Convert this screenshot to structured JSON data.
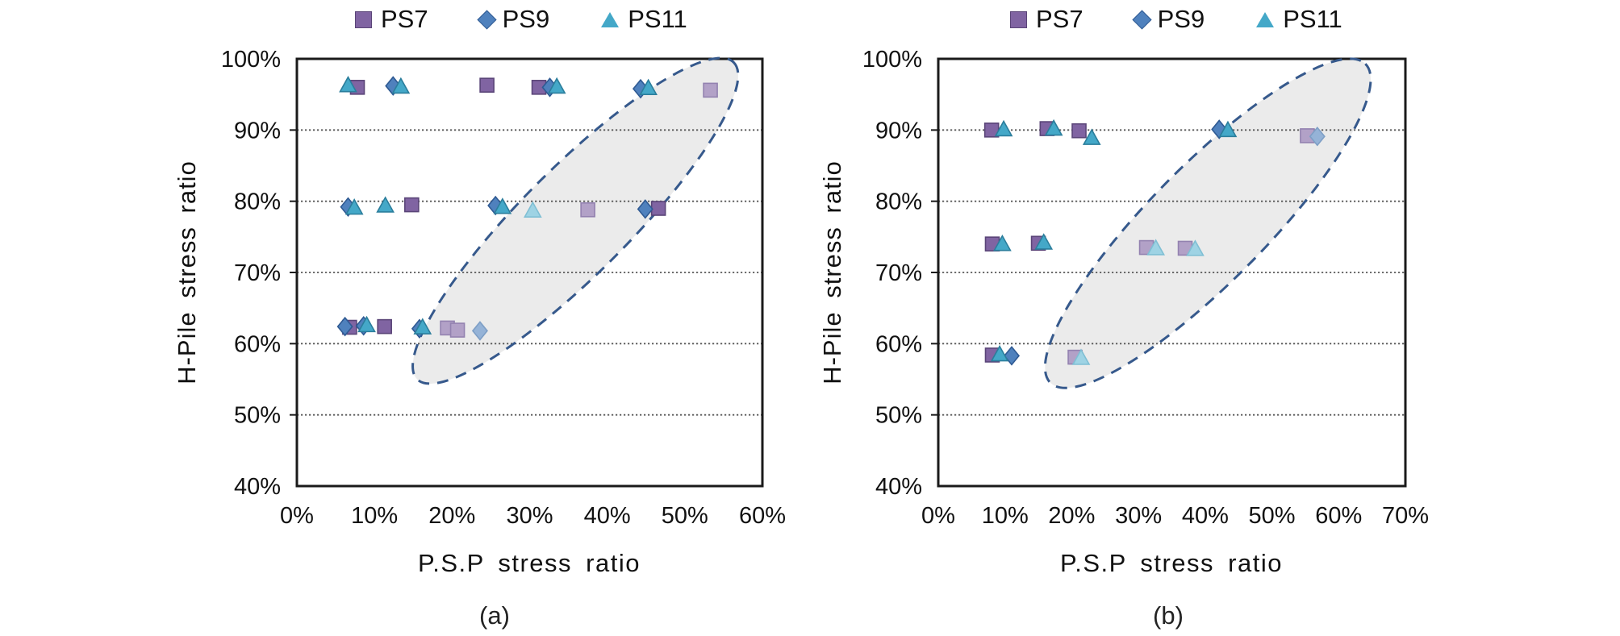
{
  "figure": {
    "background": "#ffffff"
  },
  "chart_data": [
    {
      "id": "a",
      "type": "scatter",
      "caption": "(a)",
      "x_axis": {
        "title": "P.S.P stress ratio",
        "min": 0,
        "max": 60,
        "tick_step": 10,
        "tick_labels": [
          "0%",
          "10%",
          "20%",
          "30%",
          "40%",
          "50%",
          "60%"
        ]
      },
      "y_axis": {
        "title": "H-Pile stress ratio",
        "min": 40,
        "max": 100,
        "tick_step": 10,
        "tick_labels": [
          "40%",
          "50%",
          "60%",
          "70%",
          "80%",
          "90%",
          "100%"
        ]
      },
      "grid": {
        "horizontal_dotted_at": [
          50,
          60,
          70,
          80,
          90
        ],
        "color": "#595959"
      },
      "highlight_ellipse": {
        "from": [
          15.5,
          55
        ],
        "to": [
          56.3,
          99.5
        ],
        "minor_radius_px": 66,
        "fill": "#ebebeb",
        "border": "#36598c"
      },
      "series": [
        {
          "name": "PS7",
          "marker": "square",
          "color": "#8064a2",
          "border": "#5a4578",
          "light_color": "#b2a1c7",
          "light_border": "#9382b0",
          "points": [
            [
              7.8,
              96
            ],
            [
              24.5,
              96.3
            ],
            [
              31.2,
              96
            ],
            [
              14.8,
              79.5
            ],
            [
              46.6,
              79
            ],
            [
              6.8,
              62.3
            ],
            [
              11.3,
              62.4
            ]
          ],
          "light_points": [
            [
              53.3,
              95.6
            ],
            [
              37.5,
              78.8
            ],
            [
              19.4,
              62.2
            ],
            [
              20.7,
              61.9
            ]
          ]
        },
        {
          "name": "PS9",
          "marker": "diamond",
          "color": "#4f81bd",
          "border": "#2f5a93",
          "light_color": "#95b3d7",
          "light_border": "#7e9fc6",
          "points": [
            [
              12.4,
              96.2
            ],
            [
              32.6,
              96
            ],
            [
              44.3,
              95.8
            ],
            [
              6.6,
              79.2
            ],
            [
              25.6,
              79.4
            ],
            [
              44.9,
              78.9
            ],
            [
              6.2,
              62.4
            ],
            [
              8.6,
              62.5
            ],
            [
              15.8,
              62.1
            ]
          ],
          "light_points": [
            [
              23.6,
              61.8
            ]
          ]
        },
        {
          "name": "PS11",
          "marker": "triangle",
          "color": "#44a8c8",
          "border": "#2b7e9c",
          "light_color": "#9ed3e4",
          "light_border": "#7fbfd4",
          "points": [
            [
              6.6,
              96.3
            ],
            [
              13.4,
              96.1
            ],
            [
              33.5,
              96.1
            ],
            [
              45.3,
              95.9
            ],
            [
              7.4,
              79.1
            ],
            [
              11.4,
              79.4
            ],
            [
              26.5,
              79.2
            ],
            [
              9.0,
              62.6
            ],
            [
              16.2,
              62.3
            ]
          ],
          "light_points": [
            [
              30.4,
              78.7
            ]
          ]
        }
      ]
    },
    {
      "id": "b",
      "type": "scatter",
      "caption": "(b)",
      "x_axis": {
        "title": "P.S.P stress ratio",
        "min": 0,
        "max": 70,
        "tick_step": 10,
        "tick_labels": [
          "0%",
          "10%",
          "20%",
          "30%",
          "40%",
          "50%",
          "60%",
          "70%"
        ]
      },
      "y_axis": {
        "title": "H-Pile stress ratio",
        "min": 40,
        "max": 100,
        "tick_step": 10,
        "tick_labels": [
          "40%",
          "50%",
          "60%",
          "70%",
          "80%",
          "90%",
          "100%"
        ]
      },
      "grid": {
        "horizontal_dotted_at": [
          50,
          60,
          70,
          80,
          90
        ],
        "color": "#595959"
      },
      "highlight_ellipse": {
        "from": [
          16.8,
          54.5
        ],
        "to": [
          64,
          99.3
        ],
        "minor_radius_px": 72,
        "fill": "#ebebeb",
        "border": "#36598c"
      },
      "series": [
        {
          "name": "PS7",
          "marker": "square",
          "color": "#8064a2",
          "border": "#5a4578",
          "light_color": "#b2a1c7",
          "light_border": "#9382b0",
          "points": [
            [
              8.0,
              90
            ],
            [
              16.3,
              90.2
            ],
            [
              21.1,
              89.9
            ],
            [
              8.1,
              74
            ],
            [
              15.0,
              74.1
            ],
            [
              8.1,
              58.4
            ]
          ],
          "light_points": [
            [
              55.3,
              89.2
            ],
            [
              31.2,
              73.5
            ],
            [
              37.0,
              73.4
            ],
            [
              20.5,
              58.1
            ]
          ]
        },
        {
          "name": "PS9",
          "marker": "diamond",
          "color": "#4f81bd",
          "border": "#2f5a93",
          "light_color": "#95b3d7",
          "light_border": "#7e9fc6",
          "points": [
            [
              42.1,
              90.1
            ],
            [
              11.0,
              58.3
            ]
          ],
          "light_points": [
            [
              56.8,
              89.1
            ]
          ]
        },
        {
          "name": "PS11",
          "marker": "triangle",
          "color": "#44a8c8",
          "border": "#2b7e9c",
          "light_color": "#9ed3e4",
          "light_border": "#7fbfd4",
          "points": [
            [
              9.8,
              90.1
            ],
            [
              17.3,
              90.2
            ],
            [
              23.0,
              88.9
            ],
            [
              43.4,
              90.0
            ],
            [
              9.6,
              74.0
            ],
            [
              15.8,
              74.2
            ],
            [
              9.2,
              58.5
            ]
          ],
          "light_points": [
            [
              32.6,
              73.4
            ],
            [
              38.5,
              73.3
            ],
            [
              21.4,
              58.0
            ]
          ]
        }
      ]
    }
  ]
}
